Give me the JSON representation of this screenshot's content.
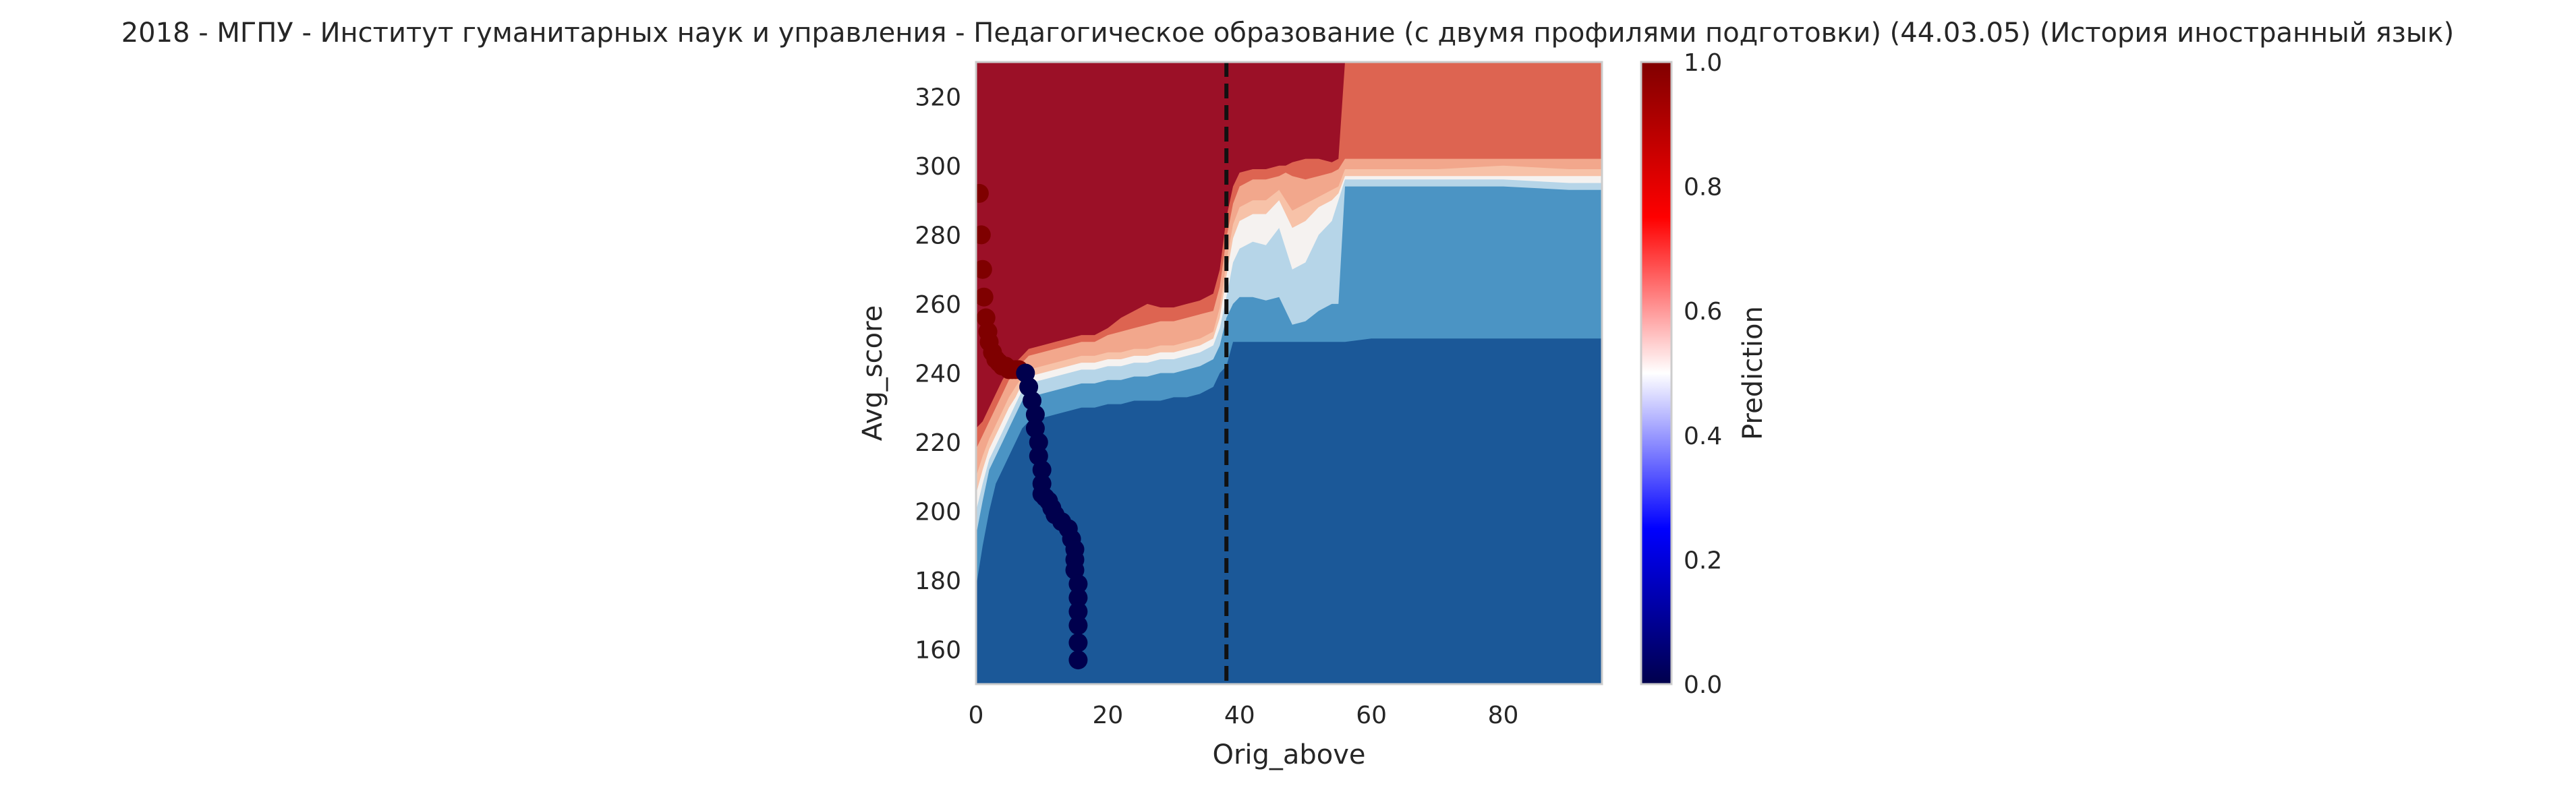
{
  "chart_data": {
    "type": "heatmap",
    "title": "2018 - МГПУ - Институт гуманитарных наук и управления - Педагогическое образование (с двумя профилями подготовки) (44.03.05) (История иностранный язык)",
    "xlabel": "Orig_above",
    "ylabel": "Avg_score",
    "xlim": [
      0,
      95
    ],
    "ylim": [
      150,
      330
    ],
    "xticks": [
      0,
      20,
      40,
      60,
      80
    ],
    "yticks": [
      160,
      180,
      200,
      220,
      240,
      260,
      280,
      300,
      320
    ],
    "grid": false,
    "colorbar": {
      "label": "Prediction",
      "colormap": "seismic",
      "range": [
        0,
        1
      ],
      "ticks": [
        "0.0",
        "0.2",
        "0.4",
        "0.6",
        "0.8",
        "1.0"
      ]
    },
    "vline": {
      "x": 38,
      "style": "dashed",
      "color": "#111111"
    },
    "contour_levels": [
      {
        "level": 0.0,
        "color": "#1b5898"
      },
      {
        "level": 0.1,
        "color": "#4b94c4"
      },
      {
        "level": 0.3,
        "color": "#b6d5e8"
      },
      {
        "level": 0.5,
        "color": "#f5f2f0"
      },
      {
        "level": 0.6,
        "color": "#f7c2a8"
      },
      {
        "level": 0.7,
        "color": "#f2a78c"
      },
      {
        "level": 0.8,
        "color": "#dd6451"
      },
      {
        "level": 0.9,
        "color": "#9b1027"
      }
    ],
    "boundaries": [
      {
        "x": [
          0,
          1,
          2,
          3,
          4,
          5,
          6,
          7,
          8,
          10,
          12,
          14,
          16,
          18,
          20,
          22,
          24,
          26,
          28,
          30,
          32,
          34,
          36,
          37,
          38,
          39,
          40,
          42,
          44,
          46,
          47,
          48,
          50,
          52,
          54,
          55,
          56,
          60,
          70,
          80,
          90,
          95
        ],
        "y": [
          178,
          190,
          200,
          208,
          212,
          216,
          220,
          224,
          226,
          227,
          228,
          229,
          230,
          230,
          231,
          231,
          232,
          232,
          232,
          233,
          233,
          234,
          236,
          240,
          242,
          249,
          249,
          249,
          249,
          249,
          249,
          249,
          249,
          249,
          249,
          249,
          249,
          250,
          250,
          250,
          250,
          250
        ]
      },
      {
        "x": [
          0,
          1,
          2,
          3,
          4,
          5,
          6,
          7,
          8,
          10,
          12,
          14,
          16,
          18,
          20,
          22,
          24,
          26,
          28,
          30,
          32,
          34,
          36,
          37,
          38,
          39,
          40,
          42,
          44,
          46,
          47,
          48,
          50,
          52,
          54,
          55,
          56,
          60,
          70,
          80,
          90,
          95
        ],
        "y": [
          193,
          203,
          212,
          216,
          220,
          224,
          228,
          232,
          233,
          234,
          235,
          236,
          237,
          237,
          238,
          238,
          239,
          239,
          240,
          240,
          241,
          242,
          244,
          248,
          256,
          260,
          262,
          262,
          261,
          262,
          258,
          254,
          255,
          258,
          260,
          260,
          294,
          294,
          294,
          294,
          293,
          293
        ]
      },
      {
        "x": [
          0,
          1,
          2,
          3,
          4,
          5,
          6,
          7,
          8,
          10,
          12,
          14,
          16,
          18,
          20,
          22,
          24,
          26,
          28,
          30,
          32,
          34,
          36,
          37,
          38,
          39,
          40,
          42,
          44,
          46,
          47,
          48,
          50,
          52,
          54,
          55,
          56,
          60,
          70,
          80,
          90,
          95
        ],
        "y": [
          200,
          208,
          215,
          219,
          223,
          227,
          231,
          235,
          237,
          238,
          239,
          240,
          241,
          241,
          242,
          242,
          243,
          243,
          244,
          244,
          245,
          246,
          248,
          253,
          262,
          272,
          276,
          278,
          277,
          282,
          276,
          270,
          272,
          280,
          284,
          290,
          296,
          296,
          296,
          296,
          295,
          295
        ]
      },
      {
        "x": [
          0,
          1,
          2,
          3,
          4,
          5,
          6,
          7,
          8,
          10,
          12,
          14,
          16,
          18,
          20,
          22,
          24,
          26,
          28,
          30,
          32,
          34,
          36,
          37,
          38,
          39,
          40,
          42,
          44,
          46,
          47,
          48,
          50,
          52,
          54,
          55,
          56,
          60,
          70,
          80,
          90,
          95
        ],
        "y": [
          205,
          212,
          218,
          222,
          226,
          230,
          233,
          237,
          239,
          240,
          241,
          242,
          243,
          243,
          244,
          244,
          245,
          245,
          246,
          246,
          247,
          248,
          250,
          256,
          268,
          279,
          284,
          286,
          286,
          290,
          286,
          282,
          284,
          288,
          290,
          292,
          297,
          297,
          297,
          297,
          297,
          297
        ]
      },
      {
        "x": [
          0,
          1,
          2,
          3,
          4,
          5,
          6,
          7,
          8,
          10,
          12,
          14,
          16,
          18,
          20,
          22,
          24,
          26,
          28,
          30,
          32,
          34,
          36,
          37,
          38,
          39,
          40,
          42,
          44,
          46,
          47,
          48,
          50,
          52,
          54,
          55,
          56,
          60,
          70,
          80,
          90,
          95
        ],
        "y": [
          210,
          216,
          221,
          225,
          229,
          233,
          236,
          239,
          241,
          242,
          243,
          244,
          245,
          245,
          246,
          246,
          247,
          247,
          248,
          248,
          249,
          250,
          252,
          259,
          272,
          283,
          288,
          290,
          290,
          293,
          290,
          287,
          289,
          291,
          293,
          294,
          299,
          299,
          299,
          300,
          299,
          299
        ]
      },
      {
        "x": [
          0,
          1,
          2,
          3,
          4,
          5,
          6,
          7,
          8,
          10,
          12,
          14,
          16,
          18,
          20,
          22,
          24,
          26,
          28,
          30,
          32,
          34,
          36,
          37,
          38,
          39,
          40,
          42,
          44,
          46,
          47,
          48,
          50,
          52,
          54,
          55,
          56,
          60,
          70,
          80,
          90,
          95
        ],
        "y": [
          218,
          222,
          226,
          230,
          234,
          238,
          240,
          243,
          245,
          246,
          247,
          248,
          249,
          249,
          251,
          252,
          253,
          254,
          255,
          255,
          256,
          257,
          258,
          265,
          279,
          289,
          294,
          296,
          296,
          297,
          298,
          297,
          296,
          297,
          298,
          299,
          302,
          302,
          302,
          302,
          302,
          302
        ]
      },
      {
        "x": [
          0,
          1,
          2,
          3,
          4,
          5,
          6,
          7,
          8,
          10,
          12,
          14,
          16,
          18,
          20,
          22,
          24,
          26,
          28,
          30,
          32,
          34,
          36,
          37,
          38,
          39,
          40,
          42,
          44,
          46,
          47,
          48,
          50,
          52,
          54,
          55,
          56,
          60,
          70,
          80,
          90,
          95
        ],
        "y": [
          224,
          226,
          230,
          234,
          238,
          241,
          243,
          245,
          247,
          248,
          249,
          250,
          251,
          251,
          253,
          256,
          258,
          260,
          259,
          259,
          260,
          261,
          263,
          270,
          285,
          294,
          298,
          299,
          299,
          300,
          300,
          301,
          302,
          302,
          301,
          302,
          330,
          330,
          330,
          330,
          330,
          330
        ]
      }
    ],
    "scatter_series": [
      {
        "name": "",
        "color": "#7f0000",
        "x": [
          0.5,
          0.8,
          1.0,
          1.2,
          1.5,
          1.8,
          2.0,
          2.5,
          3.0,
          3.5,
          4.0,
          4.5,
          5.0,
          5.5,
          6.0,
          6.5
        ],
        "y": [
          292,
          280,
          270,
          262,
          256,
          252,
          249,
          246,
          244,
          243,
          242,
          242,
          241,
          241,
          241,
          241
        ]
      },
      {
        "name": "",
        "color": "#00004d",
        "x": [
          7.5,
          8.0,
          8.5,
          9.0,
          9.0,
          9.5,
          9.5,
          10.0,
          10.0,
          10.0,
          10.5,
          11.0,
          11.5,
          12.0,
          13.0,
          14.0,
          14.5,
          15.0,
          15.0,
          15.0,
          15.5,
          15.5,
          15.5,
          15.5,
          15.5,
          15.5
        ],
        "y": [
          240,
          236,
          232,
          228,
          224,
          220,
          216,
          212,
          208,
          205,
          204,
          203,
          201,
          199,
          197,
          195,
          192,
          189,
          186,
          183,
          179,
          175,
          171,
          167,
          162,
          157
        ]
      }
    ]
  }
}
